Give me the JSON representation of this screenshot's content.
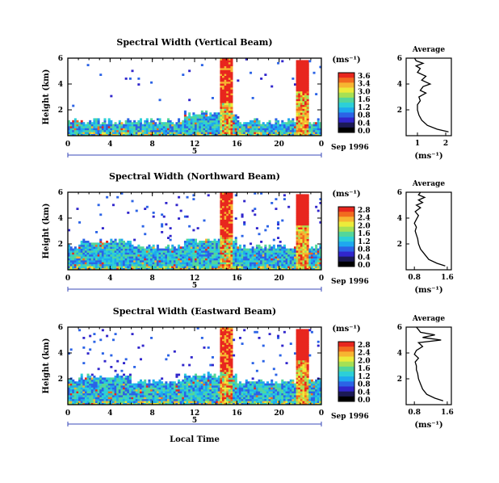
{
  "chart_data": [
    {
      "type": "heatmap",
      "title": "Spectral Width (Vertical Beam)",
      "ylabel": "Height (km)",
      "xlabel": "",
      "x_ticks": [
        "0",
        "4",
        "8",
        "12",
        "16",
        "20",
        "0"
      ],
      "y_ticks": [
        "2",
        "4",
        "6"
      ],
      "xlim": [
        0,
        24
      ],
      "ylim": [
        0,
        6
      ],
      "date_marker": "5",
      "date_label": "Sep 1996",
      "colorbar": {
        "label": "(ms⁻¹)",
        "ticks": [
          "3.6",
          "3.4",
          "3.0",
          "1.6",
          "1.2",
          "0.8",
          "0.4",
          "0.0"
        ],
        "colors": [
          "#e8261e",
          "#f26a1f",
          "#f7b531",
          "#eceb3a",
          "#a6e054",
          "#53d69b",
          "#2ccfd8",
          "#1ea8ef",
          "#2b63e6",
          "#3126cc",
          "#1c1a55",
          "#000000"
        ]
      },
      "description_cells": "spectral width field by time and height",
      "average_profile": {
        "title": "Average",
        "xlabel": "(ms⁻¹)",
        "x_ticks": [
          "1",
          "2"
        ],
        "xlim": [
          0.6,
          2.2
        ],
        "y_ticks": [
          "2",
          "4",
          "6"
        ],
        "ylim": [
          0,
          6
        ],
        "x": [
          2.1,
          1.7,
          1.35,
          1.15,
          1.05,
          1.0,
          1.0,
          1.1,
          1.05,
          1.3,
          1.1,
          1.2,
          1.45,
          1.15,
          1.3,
          1.0,
          1.1,
          0.95,
          1.2,
          0.95,
          0.9
        ],
        "y": [
          0.3,
          0.5,
          0.8,
          1.2,
          1.6,
          2.0,
          2.4,
          2.7,
          3.0,
          3.3,
          3.5,
          3.8,
          4.0,
          4.3,
          4.6,
          4.9,
          5.2,
          5.4,
          5.6,
          5.8,
          6.0
        ]
      }
    },
    {
      "type": "heatmap",
      "title": "Spectral Width (Northward Beam)",
      "ylabel": "Height (km)",
      "xlabel": "",
      "x_ticks": [
        "0",
        "4",
        "8",
        "12",
        "16",
        "20",
        "0"
      ],
      "y_ticks": [
        "2",
        "4",
        "6"
      ],
      "xlim": [
        0,
        24
      ],
      "ylim": [
        0,
        6
      ],
      "date_marker": "5",
      "date_label": "Sep 1996",
      "colorbar": {
        "label": "(ms⁻¹)",
        "ticks": [
          "2.8",
          "2.4",
          "2.0",
          "1.6",
          "1.2",
          "0.8",
          "0.4",
          "0.0"
        ],
        "colors": [
          "#e8261e",
          "#f26a1f",
          "#f7b531",
          "#eceb3a",
          "#a6e054",
          "#53d69b",
          "#2ccfd8",
          "#1ea8ef",
          "#2b63e6",
          "#3126cc",
          "#1c1a55",
          "#000000"
        ]
      },
      "average_profile": {
        "title": "Average",
        "xlabel": "(ms⁻¹)",
        "x_ticks": [
          "0.8",
          "1.6"
        ],
        "xlim": [
          0.6,
          1.7
        ],
        "y_ticks": [
          "2",
          "4",
          "6"
        ],
        "ylim": [
          0,
          6
        ],
        "x": [
          1.55,
          1.35,
          1.15,
          1.05,
          0.95,
          0.9,
          0.88,
          0.85,
          0.82,
          0.85,
          0.8,
          0.85,
          0.9,
          0.82,
          0.95,
          0.85,
          1.0,
          0.9,
          1.05,
          0.9,
          0.95
        ],
        "y": [
          0.3,
          0.5,
          0.8,
          1.2,
          1.6,
          2.0,
          2.4,
          2.7,
          3.0,
          3.3,
          3.6,
          3.9,
          4.2,
          4.5,
          4.8,
          5.0,
          5.2,
          5.4,
          5.6,
          5.8,
          6.0
        ]
      }
    },
    {
      "type": "heatmap",
      "title": "Spectral Width (Eastward Beam)",
      "ylabel": "Height (km)",
      "xlabel": "Local Time",
      "x_ticks": [
        "0",
        "4",
        "8",
        "12",
        "16",
        "20",
        "0"
      ],
      "y_ticks": [
        "2",
        "4",
        "6"
      ],
      "xlim": [
        0,
        24
      ],
      "ylim": [
        0,
        6
      ],
      "date_marker": "5",
      "date_label": "Sep 1996",
      "colorbar": {
        "label": "(ms⁻¹)",
        "ticks": [
          "2.8",
          "2.4",
          "2.0",
          "1.6",
          "1.2",
          "0.8",
          "0.4",
          "0.0"
        ],
        "colors": [
          "#e8261e",
          "#f26a1f",
          "#f7b531",
          "#eceb3a",
          "#a6e054",
          "#53d69b",
          "#2ccfd8",
          "#1ea8ef",
          "#2b63e6",
          "#3126cc",
          "#1c1a55",
          "#000000"
        ]
      },
      "average_profile": {
        "title": "Average",
        "xlabel": "(ms⁻¹)",
        "x_ticks": [
          "0.8",
          "1.6"
        ],
        "xlim": [
          0.6,
          1.7
        ],
        "y_ticks": [
          "2",
          "4",
          "6"
        ],
        "ylim": [
          0,
          6
        ],
        "x": [
          1.5,
          1.3,
          1.1,
          1.0,
          0.95,
          0.9,
          0.88,
          0.85,
          0.85,
          0.82,
          0.9,
          0.8,
          0.85,
          1.0,
          0.9,
          1.45,
          1.0,
          1.3,
          0.95,
          0.9,
          0.85
        ],
        "y": [
          0.3,
          0.5,
          0.8,
          1.2,
          1.6,
          2.0,
          2.4,
          2.7,
          3.0,
          3.3,
          3.6,
          3.9,
          4.2,
          4.5,
          4.8,
          5.0,
          5.2,
          5.4,
          5.6,
          5.8,
          6.0
        ]
      }
    }
  ]
}
